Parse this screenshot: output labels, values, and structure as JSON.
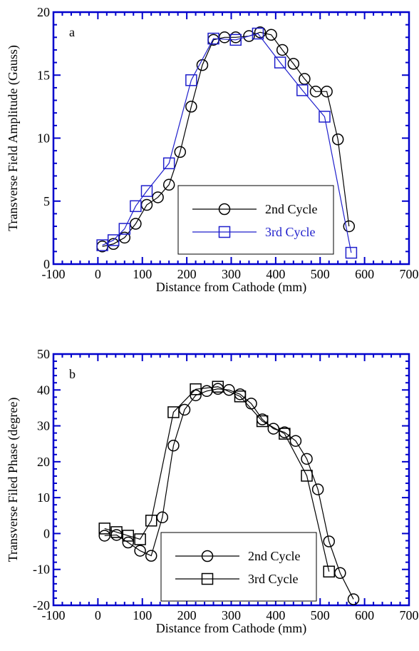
{
  "chart_data": [
    {
      "type": "line",
      "panel_label": "a",
      "xlabel": "Distance from Cathode (mm)",
      "ylabel": "Transverse Field Amplitude (Gauss)",
      "xlim": [
        -100,
        700
      ],
      "ylim": [
        0,
        20
      ],
      "xticks": [
        -100,
        0,
        100,
        200,
        300,
        400,
        500,
        600,
        700
      ],
      "yticks": [
        0,
        5,
        10,
        15,
        20
      ],
      "grid": false,
      "legend_placement": "bottom-right",
      "series": [
        {
          "name": "2nd Cycle",
          "marker": "circle",
          "color": "#000000",
          "x": [
            10,
            35,
            60,
            85,
            110,
            135,
            160,
            185,
            210,
            235,
            260,
            285,
            310,
            340,
            365,
            390,
            415,
            440,
            465,
            490,
            515,
            540,
            565
          ],
          "y": [
            1.4,
            1.6,
            2.1,
            3.2,
            4.7,
            5.3,
            6.3,
            8.9,
            12.5,
            15.8,
            17.8,
            18.0,
            18.0,
            18.1,
            18.4,
            18.2,
            17.0,
            15.9,
            14.7,
            13.7,
            13.7,
            9.9,
            3.0
          ]
        },
        {
          "name": "3rd Cycle",
          "marker": "square",
          "color": "#1f1fcc",
          "x": [
            10,
            35,
            60,
            85,
            110,
            160,
            210,
            260,
            310,
            360,
            410,
            460,
            510,
            570
          ],
          "y": [
            1.5,
            1.9,
            2.8,
            4.6,
            5.8,
            8.0,
            14.6,
            17.9,
            17.8,
            18.3,
            16.0,
            13.8,
            11.7,
            0.9
          ]
        }
      ]
    },
    {
      "type": "line",
      "panel_label": "b",
      "xlabel": "Distance from Cathode (mm)",
      "ylabel": "Transverse Filed Phase (degree)",
      "xlim": [
        -100,
        700
      ],
      "ylim": [
        -20,
        50
      ],
      "xticks": [
        -100,
        0,
        100,
        200,
        300,
        400,
        500,
        600,
        700
      ],
      "yticks": [
        -20,
        -10,
        0,
        10,
        20,
        30,
        40,
        50
      ],
      "grid": false,
      "legend_placement": "bottom-center",
      "series": [
        {
          "name": "2nd Cycle",
          "marker": "circle",
          "color": "#000000",
          "x": [
            15,
            42,
            68,
            95,
            120,
            145,
            170,
            195,
            220,
            245,
            270,
            295,
            320,
            345,
            370,
            395,
            420,
            445,
            470,
            495,
            520,
            545,
            575
          ],
          "y": [
            -0.6,
            -0.4,
            -2.5,
            -4.8,
            -6.2,
            4.5,
            24.5,
            34.5,
            38.5,
            39.7,
            40.3,
            40.0,
            38.8,
            36.2,
            31.8,
            29.2,
            28.2,
            25.8,
            20.8,
            12.3,
            -2.2,
            -11.0,
            -18.3
          ]
        },
        {
          "name": "3rd Cycle",
          "marker": "square",
          "color": "#000000",
          "x": [
            15,
            42,
            68,
            95,
            120,
            170,
            220,
            270,
            320,
            370,
            420,
            470,
            520
          ],
          "y": [
            1.4,
            0.4,
            -0.6,
            -1.6,
            3.6,
            33.8,
            40.2,
            40.9,
            38.2,
            31.3,
            27.8,
            16.1,
            -10.6
          ]
        }
      ]
    }
  ]
}
